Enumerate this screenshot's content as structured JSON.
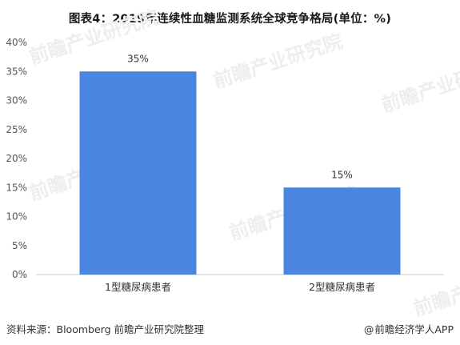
{
  "title": "图表4：2019年连续性血糖监测系统全球竞争格局(单位：%)",
  "source_label": "资料来源：Bloomberg 前瞻产业研究院整理",
  "credit_at": "@",
  "credit_label": "前瞻经济学人APP",
  "watermark_text": "前瞻产业研究院",
  "colors": {
    "bar": "#4a86e0",
    "axis": "#c8c8c8"
  },
  "chart_data": {
    "type": "bar",
    "categories": [
      "1型糖尿病患者",
      "2型糖尿病患者"
    ],
    "values": [
      35,
      15
    ],
    "data_labels": [
      "35%",
      "15%"
    ],
    "title": "图表4：2019年连续性血糖监测系统全球竞争格局(单位：%)",
    "xlabel": "",
    "ylabel": "",
    "ylim": [
      0,
      40
    ],
    "yticks": [
      0,
      5,
      10,
      15,
      20,
      25,
      30,
      35,
      40
    ],
    "ytick_labels": [
      "0%",
      "5%",
      "10%",
      "15%",
      "20%",
      "25%",
      "30%",
      "35%",
      "40%"
    ],
    "grid": false,
    "legend": "none"
  }
}
